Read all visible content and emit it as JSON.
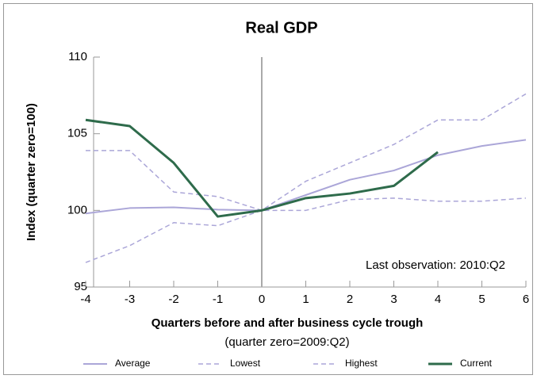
{
  "chart_data": {
    "type": "line",
    "title": "Real GDP",
    "y_label": "Index (quarter zero=100)",
    "x_label": "Quarters before and after business cycle trough",
    "subtitle": "(quarter zero=2009:Q2)",
    "annotation": "Last observation: 2010:Q2",
    "x": [
      -4,
      -3,
      -2,
      -1,
      0,
      1,
      2,
      3,
      4,
      5,
      6
    ],
    "xlim": [
      -4,
      6
    ],
    "xticks": [
      -4,
      -3,
      -2,
      -1,
      0,
      1,
      2,
      3,
      4,
      5,
      6
    ],
    "ylim": [
      95,
      110
    ],
    "yticks": [
      95,
      100,
      105,
      110
    ],
    "vline": 0,
    "series": [
      {
        "name": "Average",
        "color": "#aba6d8",
        "style": "solid",
        "width": 2,
        "values": [
          99.8,
          100.15,
          100.2,
          100.05,
          100,
          101,
          102,
          102.6,
          103.6,
          104.2,
          104.6
        ]
      },
      {
        "name": "Lowest",
        "color": "#aba6d8",
        "style": "dashed",
        "width": 1.5,
        "values": [
          96.6,
          97.7,
          99.2,
          99,
          100,
          100,
          100.7,
          100.8,
          100.6,
          100.6,
          100.8
        ]
      },
      {
        "name": "Highest",
        "color": "#aba6d8",
        "style": "dashed",
        "width": 1.5,
        "values": [
          103.9,
          103.9,
          101.2,
          100.9,
          100,
          101.9,
          103.1,
          104.3,
          105.9,
          105.9,
          107.6
        ]
      },
      {
        "name": "Current",
        "color": "#2e6b4b",
        "style": "solid",
        "width": 3,
        "values": [
          105.9,
          105.5,
          103.1,
          99.6,
          100,
          100.8,
          101.1,
          101.6,
          103.8,
          null,
          null
        ]
      }
    ]
  }
}
